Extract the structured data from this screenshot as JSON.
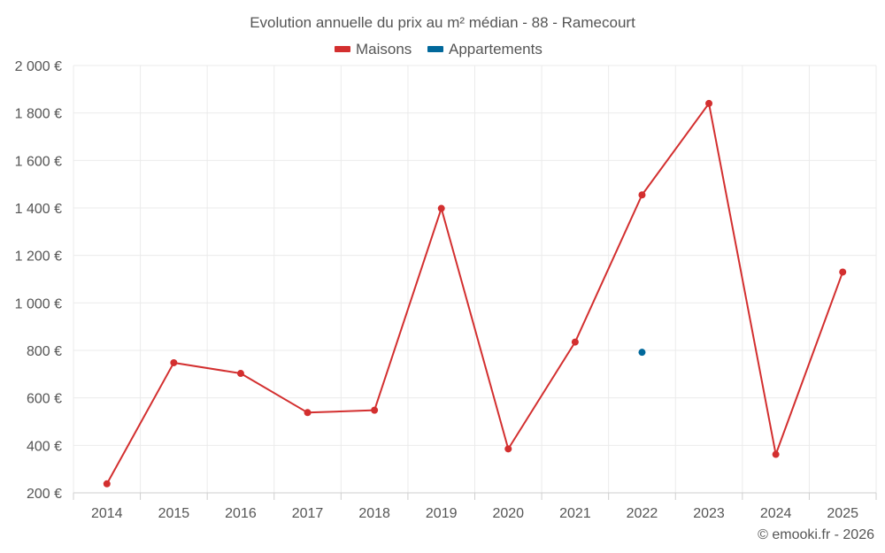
{
  "chart_data": {
    "type": "line",
    "title": "Evolution annuelle du prix au m² médian - 88 - Ramecourt",
    "categories": [
      "2014",
      "2015",
      "2016",
      "2017",
      "2018",
      "2019",
      "2020",
      "2021",
      "2022",
      "2023",
      "2024",
      "2025"
    ],
    "y_ticks": [
      "200 €",
      "400 €",
      "600 €",
      "800 €",
      "1 000 €",
      "1 200 €",
      "1 400 €",
      "1 600 €",
      "1 800 €",
      "2 000 €"
    ],
    "ylim": [
      200,
      2000
    ],
    "grid": true,
    "legend_position": "top-center",
    "series": [
      {
        "name": "Maisons",
        "color": "#d32f2f",
        "values": [
          238,
          748,
          703,
          538,
          548,
          1398,
          385,
          835,
          1455,
          1840,
          362,
          1130
        ]
      },
      {
        "name": "Appartements",
        "color": "#01689b",
        "values": [
          null,
          null,
          null,
          null,
          null,
          null,
          null,
          null,
          792,
          null,
          null,
          null
        ]
      }
    ]
  },
  "credit": "© emooki.fr - 2026"
}
